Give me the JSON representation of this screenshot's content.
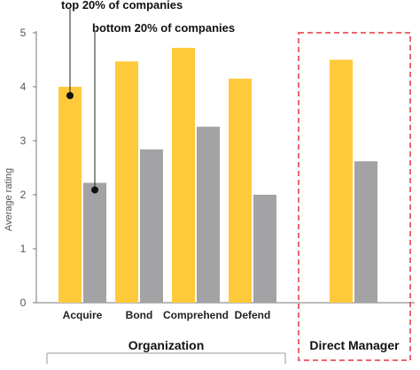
{
  "chart_data": {
    "type": "bar",
    "ylabel": "Average rating",
    "ylim": [
      0,
      5
    ],
    "yticks": [
      0,
      1,
      2,
      3,
      4,
      5
    ],
    "categories": [
      "Acquire",
      "Bond",
      "Comprehend",
      "Defend",
      "Direct Manager"
    ],
    "series": [
      {
        "name": "top 20% of companies",
        "color": "#FFC93C",
        "values": [
          4.0,
          4.47,
          4.72,
          4.15,
          4.5
        ]
      },
      {
        "name": "bottom 20% of companies",
        "color": "#A3A3A6",
        "values": [
          2.22,
          2.84,
          3.26,
          2.0,
          2.62
        ]
      }
    ],
    "groups": [
      {
        "label": "Organization",
        "categories": [
          "Acquire",
          "Bond",
          "Comprehend",
          "Defend"
        ]
      },
      {
        "label": "Direct Manager",
        "categories": [
          "Direct Manager"
        ],
        "highlight": "dashed-red-box"
      }
    ],
    "grid": false,
    "annotations": [
      {
        "text": "top 20% of companies",
        "series": "top 20% of companies",
        "category": "Acquire"
      },
      {
        "text": "bottom 20% of companies",
        "series": "bottom 20% of companies",
        "category": "Acquire"
      }
    ]
  }
}
